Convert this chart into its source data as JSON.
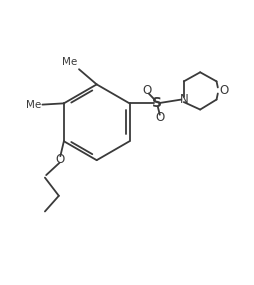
{
  "background_color": "#ffffff",
  "line_color": "#3a3a3a",
  "line_width": 1.3,
  "figsize": [
    2.54,
    2.85
  ],
  "dpi": 100,
  "xlim": [
    0.0,
    10.0
  ],
  "ylim": [
    0.0,
    10.0
  ]
}
